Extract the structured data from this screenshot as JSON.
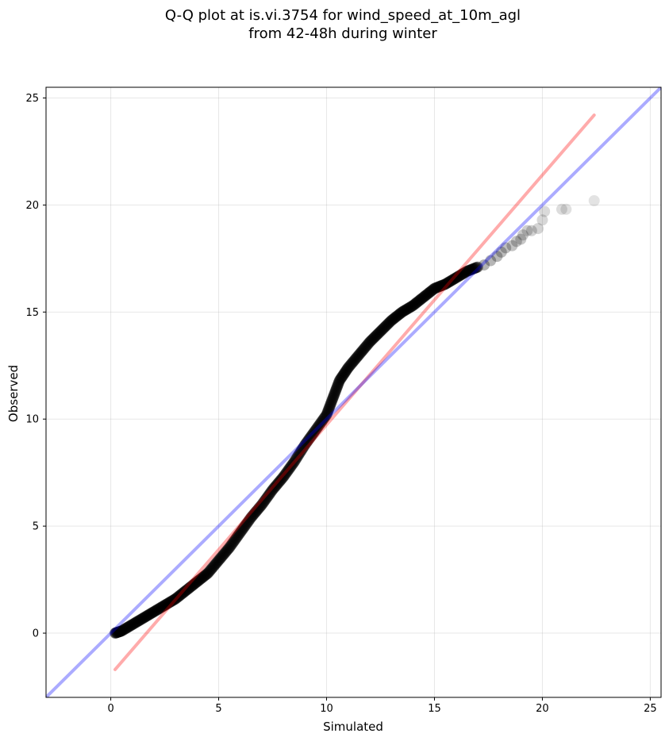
{
  "chart_data": {
    "type": "scatter",
    "title_line1": "Q-Q plot at is.vi.3754 for wind_speed_at_10m_agl",
    "title_line2": "from 42-48h during winter",
    "xlabel": "Simulated",
    "ylabel": "Observed",
    "xlim": [
      -3,
      25.5
    ],
    "ylim": [
      -3,
      25.5
    ],
    "xticks": [
      0,
      5,
      10,
      15,
      20,
      25
    ],
    "yticks": [
      0,
      5,
      10,
      15,
      20,
      25
    ],
    "grid": true,
    "marker_color": "#000000",
    "identity_line": {
      "color": "#0000ff",
      "x": [
        -3,
        25.5
      ],
      "y": [
        -3,
        25.5
      ]
    },
    "fit_line": {
      "color": "#ff0000",
      "x": [
        0.2,
        22.4
      ],
      "y": [
        -1.7,
        24.2
      ]
    },
    "quantile_curve": [
      [
        0.2,
        0.0
      ],
      [
        0.5,
        0.1
      ],
      [
        1.0,
        0.4
      ],
      [
        1.5,
        0.7
      ],
      [
        2.0,
        1.0
      ],
      [
        2.5,
        1.3
      ],
      [
        3.0,
        1.6
      ],
      [
        3.5,
        2.0
      ],
      [
        4.0,
        2.4
      ],
      [
        4.5,
        2.8
      ],
      [
        5.0,
        3.4
      ],
      [
        5.5,
        4.0
      ],
      [
        6.0,
        4.7
      ],
      [
        6.5,
        5.4
      ],
      [
        7.0,
        6.0
      ],
      [
        7.5,
        6.7
      ],
      [
        8.0,
        7.3
      ],
      [
        8.5,
        8.0
      ],
      [
        9.0,
        8.8
      ],
      [
        9.5,
        9.5
      ],
      [
        10.0,
        10.2
      ],
      [
        10.3,
        11.0
      ],
      [
        10.6,
        11.8
      ],
      [
        11.0,
        12.4
      ],
      [
        11.5,
        13.0
      ],
      [
        12.0,
        13.6
      ],
      [
        12.5,
        14.1
      ],
      [
        13.0,
        14.6
      ],
      [
        13.5,
        15.0
      ],
      [
        14.0,
        15.3
      ],
      [
        14.5,
        15.7
      ],
      [
        15.0,
        16.1
      ],
      [
        15.5,
        16.3
      ],
      [
        16.0,
        16.6
      ],
      [
        16.5,
        16.9
      ],
      [
        17.0,
        17.1
      ]
    ],
    "tail_points": [
      [
        17.3,
        17.2
      ],
      [
        17.6,
        17.4
      ],
      [
        17.9,
        17.6
      ],
      [
        18.1,
        17.8
      ],
      [
        18.3,
        18.0
      ],
      [
        18.6,
        18.1
      ],
      [
        18.8,
        18.3
      ],
      [
        19.0,
        18.4
      ],
      [
        19.1,
        18.6
      ],
      [
        19.3,
        18.8
      ],
      [
        19.5,
        18.8
      ],
      [
        19.8,
        18.9
      ],
      [
        20.0,
        19.3
      ],
      [
        20.1,
        19.7
      ],
      [
        20.9,
        19.8
      ],
      [
        21.1,
        19.8
      ],
      [
        22.4,
        20.2
      ]
    ]
  }
}
